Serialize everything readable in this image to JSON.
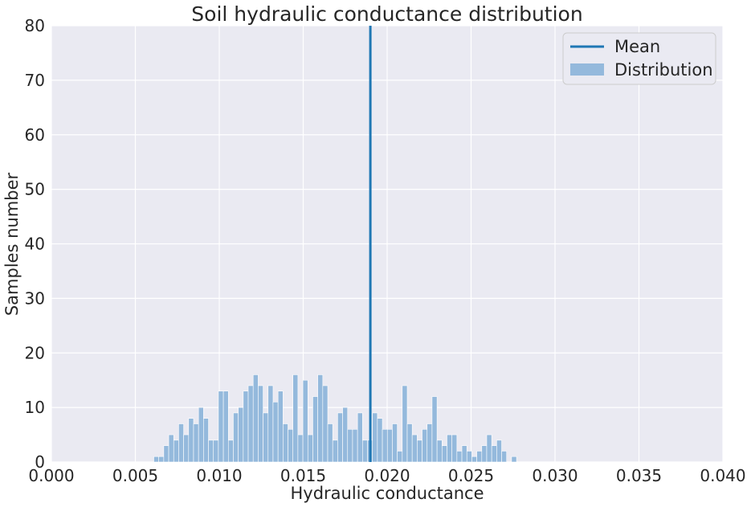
{
  "chart_data": {
    "type": "bar",
    "title": "Soil hydraulic conductance distribution",
    "xlabel": "Hydraulic conductance",
    "ylabel": "Samples number",
    "xlim": [
      0.0,
      0.04
    ],
    "ylim": [
      0,
      80
    ],
    "xticks": [
      "0.000",
      "0.005",
      "0.010",
      "0.015",
      "0.020",
      "0.025",
      "0.030",
      "0.035",
      "0.040"
    ],
    "xtick_values": [
      0.0,
      0.005,
      0.01,
      0.015,
      0.02,
      0.025,
      0.03,
      0.035,
      0.04
    ],
    "yticks": [
      0,
      10,
      20,
      30,
      40,
      50,
      60,
      70,
      80
    ],
    "grid": true,
    "legend": {
      "placement": "top-right",
      "entries": [
        "Mean",
        "Distribution"
      ]
    },
    "mean": 0.019,
    "bin_start": 0.0061,
    "bin_width": 0.000296,
    "counts": [
      1,
      1,
      3,
      5,
      4,
      7,
      5,
      8,
      7,
      10,
      8,
      4,
      4,
      13,
      13,
      4,
      9,
      10,
      13,
      14,
      16,
      14,
      9,
      14,
      11,
      13,
      7,
      6,
      16,
      5,
      15,
      5,
      12,
      16,
      14,
      7,
      4,
      9,
      10,
      6,
      6,
      9,
      4,
      4,
      9,
      8,
      6,
      6,
      7,
      2,
      14,
      7,
      5,
      4,
      6,
      7,
      12,
      4,
      3,
      5,
      5,
      2,
      3,
      2,
      1,
      2,
      3,
      5,
      3,
      4,
      2,
      0,
      1
    ],
    "colors": {
      "mean_line": "#1f77b4",
      "bars": "#94b9dc",
      "background": "#eaeaf2",
      "grid": "#ffffff"
    }
  }
}
